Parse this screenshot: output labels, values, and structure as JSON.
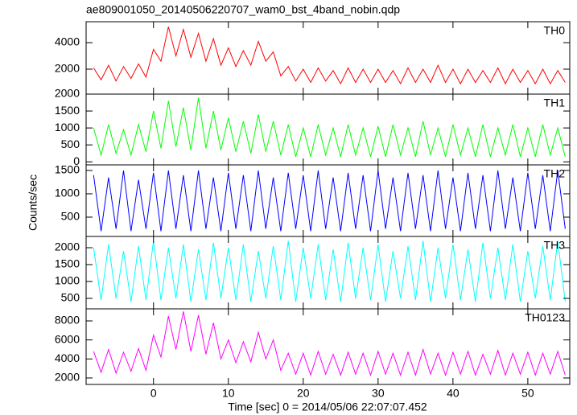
{
  "chart_data": {
    "type": "line",
    "title": "ae809001050_20140506220707_wam0_bst_4band_nobin.qdp",
    "x_label": "Time [sec] 0 = 2014/05/06 22:07:07.452",
    "y_label": "Counts/sec",
    "xlim": [
      -9,
      55.6
    ],
    "xticks": [
      0,
      10,
      20,
      30,
      40,
      50
    ],
    "x": [
      -8,
      -7,
      -6,
      -5,
      -4,
      -3,
      -2,
      -1,
      0,
      1,
      2,
      3,
      4,
      5,
      6,
      7,
      8,
      9,
      10,
      11,
      12,
      13,
      14,
      15,
      16,
      17,
      18,
      19,
      20,
      21,
      22,
      23,
      24,
      25,
      26,
      27,
      28,
      29,
      30,
      31,
      32,
      33,
      34,
      35,
      36,
      37,
      38,
      39,
      40,
      41,
      42,
      43,
      44,
      45,
      46,
      47,
      48,
      49,
      50,
      51,
      52,
      53,
      54,
      55
    ],
    "series": [
      {
        "name": "TH0",
        "color": "#ff0000",
        "ylim": [
          120,
          5580
        ],
        "yticks": [
          2000,
          4000
        ],
        "values": [
          2100,
          1200,
          2300,
          1100,
          2200,
          1300,
          2400,
          1400,
          3500,
          2600,
          5200,
          3000,
          5000,
          2900,
          4700,
          2600,
          4300,
          2300,
          3600,
          2200,
          3400,
          2300,
          4100,
          2600,
          3300,
          1500,
          2200,
          1100,
          2000,
          1000,
          2100,
          1100,
          1900,
          900,
          2100,
          1000,
          2000,
          1000,
          2000,
          1000,
          1900,
          900,
          2100,
          1000,
          2000,
          1000,
          2300,
          1000,
          2000,
          900,
          2000,
          1000,
          1900,
          1000,
          2100,
          900,
          2000,
          1000,
          1900,
          900,
          2000,
          900,
          1900,
          1000
        ]
      },
      {
        "name": "TH1",
        "color": "#00ff00",
        "ylim": [
          -90,
          2000
        ],
        "yticks": [
          0,
          500,
          1000,
          1500,
          2000
        ],
        "values": [
          1000,
          200,
          1100,
          250,
          950,
          200,
          1100,
          300,
          1500,
          400,
          1800,
          450,
          1600,
          350,
          1900,
          400,
          1500,
          350,
          1300,
          300,
          1200,
          250,
          1400,
          300,
          1200,
          200,
          1100,
          150,
          1000,
          150,
          1100,
          200,
          1000,
          150,
          1100,
          200,
          1000,
          150,
          1050,
          150,
          1100,
          200,
          1000,
          150,
          1200,
          200,
          1000,
          150,
          1100,
          200,
          1000,
          150,
          1100,
          150,
          1000,
          200,
          1100,
          150,
          1000,
          150,
          1100,
          200,
          1000,
          150
        ]
      },
      {
        "name": "TH2",
        "color": "#0000ff",
        "ylim": [
          86,
          1620
        ],
        "yticks": [
          500,
          1000,
          1500
        ],
        "values": [
          1400,
          200,
          1350,
          250,
          1500,
          200,
          1300,
          250,
          1450,
          200,
          1500,
          250,
          1400,
          200,
          1500,
          250,
          1350,
          200,
          1450,
          250,
          1400,
          200,
          1500,
          250,
          1350,
          200,
          1450,
          250,
          1400,
          200,
          1500,
          250,
          1350,
          200,
          1450,
          250,
          1400,
          200,
          1500,
          250,
          1350,
          200,
          1450,
          250,
          1400,
          200,
          1500,
          250,
          1350,
          200,
          1450,
          250,
          1400,
          200,
          1500,
          250,
          1350,
          200,
          1450,
          250,
          1400,
          200,
          1500,
          250
        ]
      },
      {
        "name": "TH3",
        "color": "#00ffff",
        "ylim": [
          190,
          2333
        ],
        "yticks": [
          500,
          1000,
          1500,
          2000
        ],
        "values": [
          2000,
          450,
          2100,
          500,
          1900,
          400,
          2050,
          450,
          2200,
          450,
          2000,
          500,
          2100,
          400,
          1950,
          450,
          2150,
          500,
          2000,
          450,
          2100,
          400,
          1900,
          500,
          2050,
          450,
          2200,
          400,
          2000,
          500,
          2100,
          450,
          1950,
          400,
          2150,
          500,
          2000,
          450,
          2100,
          400,
          1900,
          500,
          2050,
          450,
          2200,
          400,
          2000,
          500,
          2100,
          450,
          1950,
          400,
          2150,
          500,
          2000,
          450,
          2100,
          400,
          1900,
          500,
          2050,
          450,
          2200,
          400
        ]
      },
      {
        "name": "TH0123",
        "color": "#ff00ff",
        "ylim": [
          1320,
          9270
        ],
        "yticks": [
          2000,
          4000,
          6000,
          8000
        ],
        "values": [
          4800,
          2600,
          5000,
          2500,
          4700,
          2700,
          5100,
          2800,
          6500,
          4200,
          8500,
          5000,
          9000,
          4800,
          8600,
          4500,
          7800,
          4000,
          6000,
          3600,
          5800,
          3700,
          6800,
          4000,
          6000,
          2800,
          4600,
          2400,
          4600,
          2300,
          4800,
          2400,
          4500,
          2300,
          4700,
          2400,
          4600,
          2300,
          4800,
          2400,
          4600,
          2300,
          4700,
          2300,
          5000,
          2400,
          4600,
          2300,
          4700,
          2400,
          4800,
          2300,
          4500,
          2400,
          4900,
          2300,
          4600,
          2400,
          4700,
          2300,
          4600,
          2400,
          4800,
          2300
        ]
      }
    ]
  }
}
